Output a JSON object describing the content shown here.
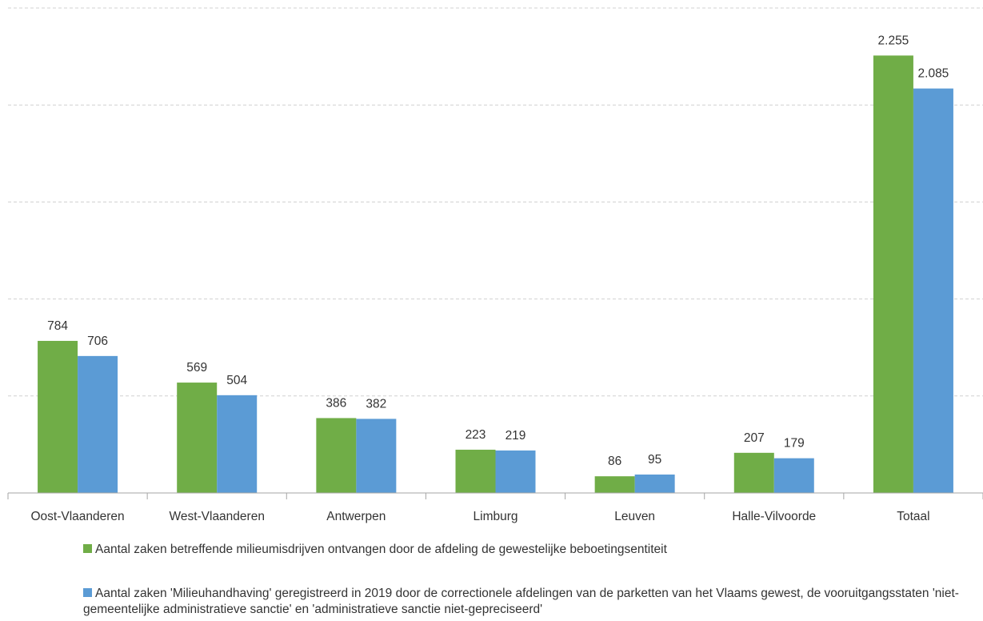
{
  "chart_data": {
    "type": "bar",
    "categories": [
      "Oost-Vlaanderen",
      "West-Vlaanderen",
      "Antwerpen",
      "Limburg",
      "Leuven",
      "Halle-Vilvoorde",
      "Totaal"
    ],
    "series": [
      {
        "name": "Aantal zaken betreffende milieumisdrijven ontvangen door de afdeling de gewestelijke beboetingsentiteit",
        "values": [
          784,
          569,
          386,
          223,
          86,
          207,
          2255
        ],
        "labels": [
          "784",
          "569",
          "386",
          "223",
          "86",
          "207",
          "2.255"
        ],
        "color": "#70ad47"
      },
      {
        "name": "Aantal zaken 'Milieuhandhaving' geregistreerd in 2019 door de correctionele afdelingen van de parketten van het Vlaams gewest, de vooruitgangsstaten 'niet-gemeentelijke administratieve sanctie' en 'administratieve sanctie niet-gepreciseerd'",
        "values": [
          706,
          504,
          382,
          219,
          95,
          179,
          2085
        ],
        "labels": [
          "706",
          "504",
          "382",
          "219",
          "95",
          "179",
          "2.085"
        ],
        "color": "#5b9bd5"
      }
    ],
    "ylim": [
      0,
      2500
    ],
    "y_gridlines": [
      500,
      1000,
      1500,
      2000,
      2500
    ],
    "grid": true,
    "grid_style": "dashed",
    "legend_position": "bottom",
    "title": "",
    "xlabel": "",
    "ylabel": ""
  }
}
